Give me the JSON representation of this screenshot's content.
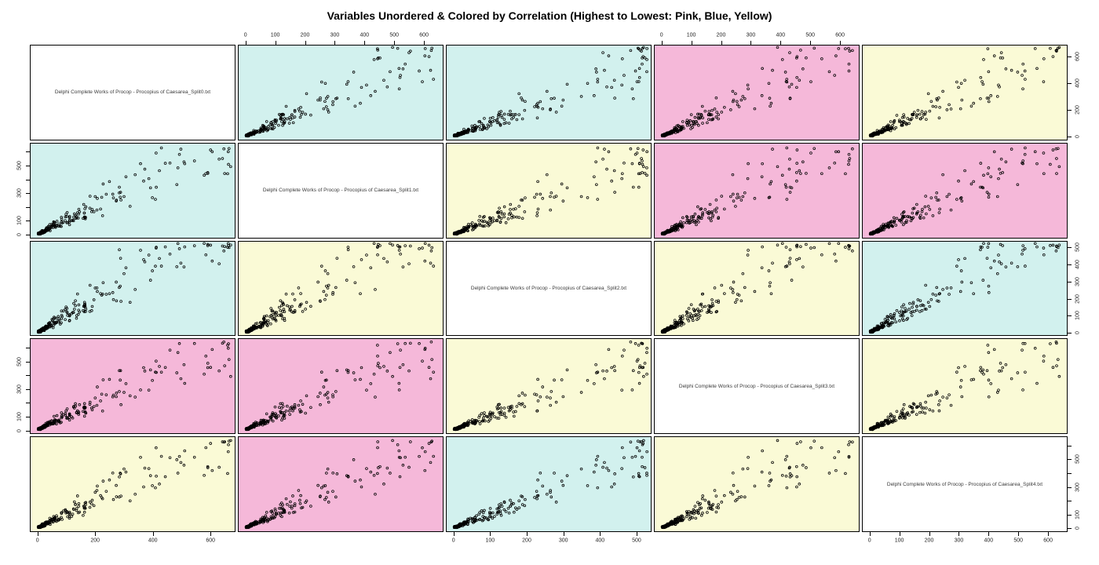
{
  "title": "Variables Unordered & Colored by Correlation (Highest to Lowest: Pink, Blue, Yellow)",
  "variables": [
    {
      "label": "Delphi Complete Works of Procop - Procopius of Caesarea_Split0.txt",
      "axis_max": 660
    },
    {
      "label": "Delphi Complete Works of Procop - Procopius of Caesarea_Split1.txt",
      "axis_max": 640
    },
    {
      "label": "Delphi Complete Works of Procop - Procopius of Caesarea_Split2.txt",
      "axis_max": 520
    },
    {
      "label": "Delphi Complete Works of Procop - Procopius of Caesarea_Split3.txt",
      "axis_max": 640
    },
    {
      "label": "Delphi Complete Works of Procop - Procopius of Caesarea_Split4.txt",
      "axis_max": 640
    }
  ],
  "palette": {
    "pink": "#F5B8D9",
    "blue": "#D2F1EE",
    "yellow": "#FAFAD6",
    "diag_bg": "#FFFFFF",
    "border": "#000000",
    "point": "#000000"
  },
  "color_matrix": [
    [
      null,
      "blue",
      "blue",
      "pink",
      "yellow"
    ],
    [
      "blue",
      null,
      "yellow",
      "pink",
      "pink"
    ],
    [
      "blue",
      "yellow",
      null,
      "yellow",
      "blue"
    ],
    [
      "pink",
      "pink",
      "yellow",
      null,
      "yellow"
    ],
    [
      "yellow",
      "pink",
      "blue",
      "yellow",
      null
    ]
  ],
  "axes": [
    {
      "side": "top",
      "col": 1,
      "ticks": [
        0,
        100,
        200,
        300,
        400,
        500,
        600
      ],
      "labels": [
        "0",
        "100",
        "200",
        "300",
        "400",
        "500",
        "600"
      ]
    },
    {
      "side": "top",
      "col": 3,
      "ticks": [
        0,
        100,
        200,
        300,
        400,
        500,
        600
      ],
      "labels": [
        "0",
        "100",
        "200",
        "300",
        "400",
        "500",
        "600"
      ]
    },
    {
      "side": "left",
      "row": 1,
      "ticks": [
        0,
        100,
        200,
        300,
        400,
        500,
        600
      ],
      "labels": [
        "0",
        "100",
        "",
        "300",
        "",
        "500",
        ""
      ]
    },
    {
      "side": "left",
      "row": 3,
      "ticks": [
        0,
        100,
        200,
        300,
        400,
        500,
        600
      ],
      "labels": [
        "0",
        "100",
        "",
        "300",
        "",
        "500",
        ""
      ]
    },
    {
      "side": "right",
      "row": 0,
      "ticks": [
        0,
        200,
        400,
        600
      ],
      "labels": [
        "0",
        "200",
        "400",
        "600"
      ]
    },
    {
      "side": "right",
      "row": 2,
      "ticks": [
        0,
        100,
        200,
        300,
        400,
        500
      ],
      "labels": [
        "0",
        "100",
        "200",
        "300",
        "400",
        "500"
      ]
    },
    {
      "side": "right",
      "row": 4,
      "ticks": [
        0,
        100,
        200,
        300,
        400,
        500,
        600
      ],
      "labels": [
        "0",
        "100",
        "",
        "300",
        "",
        "500",
        ""
      ]
    },
    {
      "side": "bottom",
      "col": 0,
      "ticks": [
        0,
        200,
        400,
        600
      ],
      "labels": [
        "0",
        "200",
        "400",
        "600"
      ]
    },
    {
      "side": "bottom",
      "col": 2,
      "ticks": [
        0,
        100,
        200,
        300,
        400,
        500
      ],
      "labels": [
        "0",
        "100",
        "200",
        "300",
        "400",
        "500"
      ]
    },
    {
      "side": "bottom",
      "col": 4,
      "ticks": [
        0,
        100,
        200,
        300,
        400,
        500,
        600
      ],
      "labels": [
        "0",
        "100",
        "200",
        "300",
        "400",
        "500",
        "600"
      ]
    }
  ],
  "chart_data": {
    "type": "scatter",
    "subtype": "scatterplot-matrix-pairs",
    "title": "Variables Unordered & Colored by Correlation (Highest to Lowest: Pink, Blue, Yellow)",
    "variables": [
      "Delphi Complete Works of Procop - Procopius of Caesarea_Split0.txt",
      "Delphi Complete Works of Procop - Procopius of Caesarea_Split1.txt",
      "Delphi Complete Works of Procop - Procopius of Caesarea_Split2.txt",
      "Delphi Complete Works of Procop - Procopius of Caesarea_Split3.txt",
      "Delphi Complete Works of Procop - Procopius of Caesarea_Split4.txt"
    ],
    "axis_ranges": [
      [
        0,
        660
      ],
      [
        0,
        640
      ],
      [
        0,
        520
      ],
      [
        0,
        640
      ],
      [
        0,
        640
      ]
    ],
    "axis_padding_frac": 0.04,
    "correlation_color_rank": {
      "highest": "pink",
      "middle": "blue",
      "lowest": "yellow"
    },
    "cell_color_meaning": "background color of each off-diagonal panel encodes pairwise correlation strength",
    "marker": {
      "shape": "open-circle",
      "color": "#000000",
      "radius_px": 1.4
    },
    "points": {
      "n": 420,
      "seed": 1234567,
      "base_power": 7,
      "base_scale": 680,
      "noise_range": [
        0.7,
        1.3
      ],
      "jitter": 8,
      "distribution": "zipf-like word-frequency values clustered near 0 with long upper tail; all pairs strongly positively correlated along the diagonal"
    }
  }
}
